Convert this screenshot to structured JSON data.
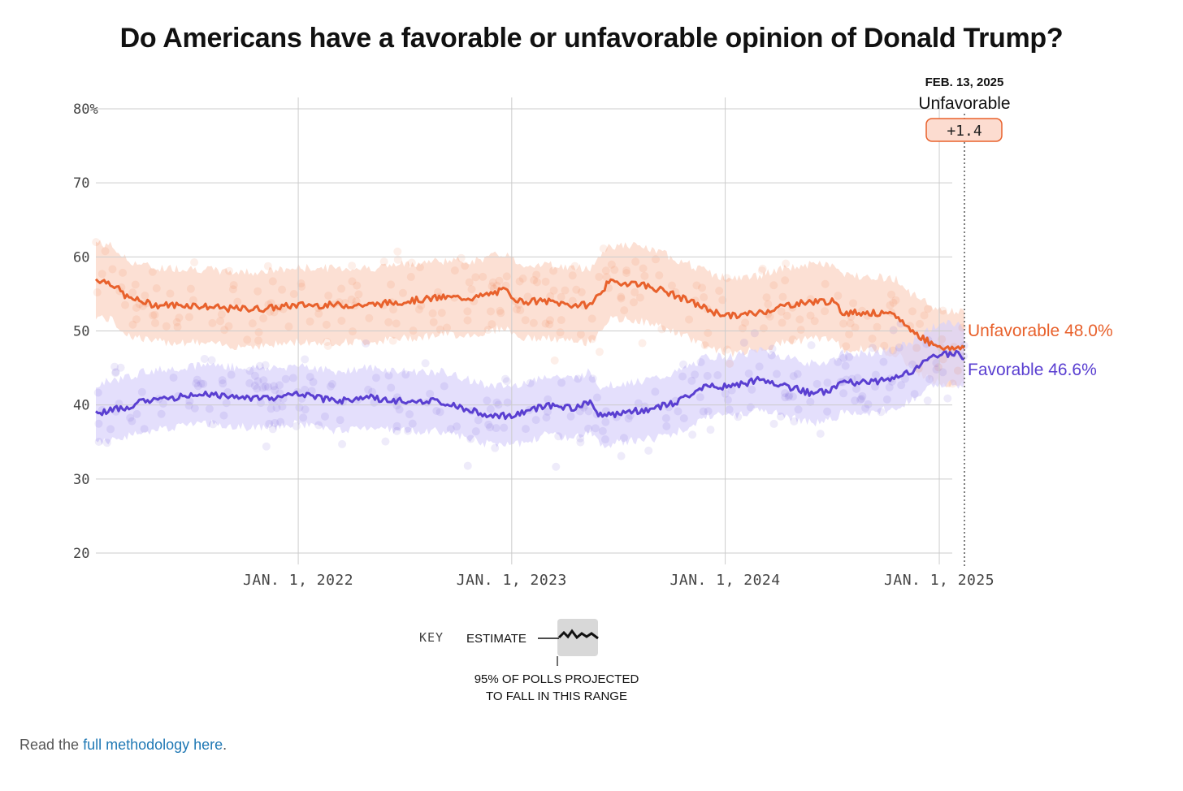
{
  "title": "Do Americans have a favorable or unfavorable opinion of Donald Trump?",
  "annotation": {
    "date": "FEB. 13, 2025",
    "leader": "Unfavorable",
    "margin": "+1.4"
  },
  "key": {
    "label": "KEY",
    "estimate": "ESTIMATE",
    "range_line1": "95% OF POLLS PROJECTED",
    "range_line2": "TO FALL IN THIS RANGE"
  },
  "footer": {
    "prefix": "Read the ",
    "link": "full methodology here",
    "suffix": "."
  },
  "colors": {
    "unfavorable": "#e8612c",
    "favorable": "#5a3fd1",
    "unfavorable_band": "#fbd3c2",
    "favorable_band": "#d9d2fb",
    "grid": "#cccccc"
  },
  "chart_data": {
    "type": "line",
    "title": "Do Americans have a favorable or unfavorable opinion of Donald Trump?",
    "x_range": [
      "2021-01-20",
      "2025-02-13"
    ],
    "ylim": [
      20,
      80
    ],
    "y_ticks": [
      "80%",
      "70",
      "60",
      "50",
      "40",
      "30",
      "20"
    ],
    "y_tick_values": [
      80,
      70,
      60,
      50,
      40,
      30,
      20
    ],
    "x_ticks": [
      "JAN. 1, 2022",
      "JAN. 1, 2023",
      "JAN. 1, 2024",
      "JAN. 1, 2025"
    ],
    "x_tick_dates": [
      "2022-01-01",
      "2023-01-01",
      "2024-01-01",
      "2025-01-01"
    ],
    "grid": true,
    "series": [
      {
        "name": "Unfavorable",
        "end_label": "Unfavorable 48.0%",
        "end_value": 48.0,
        "band_halfwidth": 5,
        "points": [
          [
            "2021-01-20",
            57.0
          ],
          [
            "2021-02-15",
            56.5
          ],
          [
            "2021-03-15",
            54.5
          ],
          [
            "2021-05-01",
            53.5
          ],
          [
            "2021-07-01",
            53.5
          ],
          [
            "2021-09-01",
            53.0
          ],
          [
            "2021-11-01",
            53.0
          ],
          [
            "2022-01-01",
            53.5
          ],
          [
            "2022-03-01",
            53.5
          ],
          [
            "2022-05-01",
            53.5
          ],
          [
            "2022-07-01",
            54.0
          ],
          [
            "2022-09-01",
            54.5
          ],
          [
            "2022-11-01",
            54.5
          ],
          [
            "2022-12-20",
            55.5
          ],
          [
            "2023-01-15",
            54.0
          ],
          [
            "2023-03-01",
            54.0
          ],
          [
            "2023-04-15",
            53.5
          ],
          [
            "2023-05-15",
            53.5
          ],
          [
            "2023-06-15",
            56.5
          ],
          [
            "2023-08-01",
            56.5
          ],
          [
            "2023-09-15",
            55.5
          ],
          [
            "2023-11-01",
            54.0
          ],
          [
            "2023-12-15",
            52.5
          ],
          [
            "2024-01-15",
            52.0
          ],
          [
            "2024-03-01",
            52.5
          ],
          [
            "2024-04-15",
            53.5
          ],
          [
            "2024-06-01",
            54.0
          ],
          [
            "2024-07-01",
            54.0
          ],
          [
            "2024-07-20",
            52.5
          ],
          [
            "2024-09-01",
            52.5
          ],
          [
            "2024-10-20",
            52.0
          ],
          [
            "2024-11-15",
            50.0
          ],
          [
            "2024-12-15",
            48.5
          ],
          [
            "2025-01-20",
            47.5
          ],
          [
            "2025-02-13",
            48.0
          ]
        ]
      },
      {
        "name": "Favorable",
        "end_label": "Favorable 46.6%",
        "end_value": 46.6,
        "band_halfwidth": 4,
        "points": [
          [
            "2021-01-20",
            38.8
          ],
          [
            "2021-03-01",
            39.5
          ],
          [
            "2021-04-15",
            40.5
          ],
          [
            "2021-06-01",
            41.0
          ],
          [
            "2021-08-01",
            41.5
          ],
          [
            "2021-10-01",
            41.0
          ],
          [
            "2021-12-01",
            41.0
          ],
          [
            "2022-01-01",
            41.5
          ],
          [
            "2022-03-01",
            40.5
          ],
          [
            "2022-05-01",
            41.0
          ],
          [
            "2022-07-01",
            40.5
          ],
          [
            "2022-09-01",
            40.5
          ],
          [
            "2022-10-15",
            39.5
          ],
          [
            "2022-12-01",
            38.5
          ],
          [
            "2023-01-01",
            38.5
          ],
          [
            "2023-03-01",
            40.0
          ],
          [
            "2023-04-15",
            39.5
          ],
          [
            "2023-05-15",
            40.5
          ],
          [
            "2023-06-01",
            38.5
          ],
          [
            "2023-07-15",
            39.0
          ],
          [
            "2023-09-01",
            39.5
          ],
          [
            "2023-10-15",
            40.5
          ],
          [
            "2023-12-01",
            42.5
          ],
          [
            "2024-01-15",
            42.5
          ],
          [
            "2024-03-01",
            43.5
          ],
          [
            "2024-04-15",
            42.5
          ],
          [
            "2024-06-01",
            41.5
          ],
          [
            "2024-07-01",
            42.0
          ],
          [
            "2024-07-20",
            43.0
          ],
          [
            "2024-09-01",
            43.0
          ],
          [
            "2024-10-15",
            43.5
          ],
          [
            "2024-11-15",
            44.5
          ],
          [
            "2024-12-20",
            46.5
          ],
          [
            "2025-01-20",
            47.0
          ],
          [
            "2025-02-13",
            46.6
          ]
        ]
      }
    ]
  }
}
